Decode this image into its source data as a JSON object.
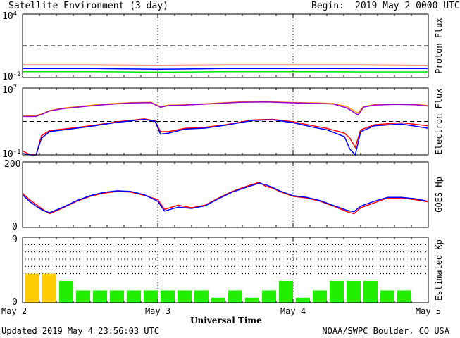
{
  "header": {
    "title": "Satellite Environment (3 day)",
    "begin_label": "Begin:",
    "begin_value": "2019 May 2 0000 UTC"
  },
  "footer": {
    "updated": "Updated 2019 May  4 23:56:03 UTC",
    "credit": "NOAA/SWPC Boulder, CO USA"
  },
  "chart_data": [
    {
      "type": "line",
      "title": "",
      "ylabel": "Proton Flux",
      "yscale": "log",
      "ylim": [
        0.01,
        10000
      ],
      "yticks": [
        {
          "v": 10000,
          "base": "10",
          "exp": "4"
        },
        {
          "v": 0.01,
          "base": "10",
          "exp": "-2"
        }
      ],
      "threshold": 10,
      "xlim": [
        0,
        3
      ],
      "grid": false,
      "series": [
        {
          "color": "#ff0000",
          "x": [
            0,
            0.5,
            1,
            1.5,
            2,
            2.5,
            3
          ],
          "values": [
            0.15,
            0.15,
            0.14,
            0.15,
            0.15,
            0.15,
            0.14
          ]
        },
        {
          "color": "#0000ff",
          "x": [
            0,
            0.5,
            1,
            1.5,
            2,
            2.5,
            3
          ],
          "values": [
            0.07,
            0.07,
            0.06,
            0.07,
            0.07,
            0.07,
            0.07
          ]
        },
        {
          "color": "#00e000",
          "x": [
            0,
            0.5,
            1,
            1.5,
            2,
            2.5,
            3
          ],
          "values": [
            0.035,
            0.035,
            0.032,
            0.035,
            0.035,
            0.034,
            0.034
          ]
        }
      ]
    },
    {
      "type": "line",
      "title": "",
      "ylabel": "Electron Flux",
      "yscale": "log",
      "ylim": [
        0.1,
        10000000
      ],
      "yticks": [
        {
          "v": 10000000,
          "base": "10",
          "exp": "7"
        },
        {
          "v": 0.1,
          "base": "10",
          "exp": "-1"
        }
      ],
      "threshold": 1000,
      "xlim": [
        0,
        3
      ],
      "grid": false,
      "series": [
        {
          "color": "#ff9900",
          "x": [
            0,
            0.1,
            0.15,
            0.2,
            0.3,
            0.45,
            0.6,
            0.8,
            0.95,
            1.02,
            1.08,
            1.2,
            1.4,
            1.6,
            1.8,
            1.95,
            2.05,
            2.2,
            2.3,
            2.4,
            2.48,
            2.52,
            2.6,
            2.75,
            2.9,
            3
          ],
          "values": [
            5000,
            5000,
            9000,
            20000,
            40000,
            70000,
            120000,
            180000,
            200000,
            60000,
            90000,
            100000,
            150000,
            220000,
            240000,
            200000,
            180000,
            160000,
            140000,
            60000,
            10000,
            60000,
            100000,
            120000,
            110000,
            80000
          ]
        },
        {
          "color": "#9900cc",
          "x": [
            0,
            0.1,
            0.15,
            0.2,
            0.3,
            0.45,
            0.6,
            0.8,
            0.95,
            1.02,
            1.08,
            1.2,
            1.4,
            1.6,
            1.8,
            1.95,
            2.05,
            2.2,
            2.3,
            2.4,
            2.48,
            2.52,
            2.6,
            2.75,
            2.9,
            3
          ],
          "values": [
            4000,
            4000,
            8000,
            18000,
            35000,
            60000,
            100000,
            160000,
            180000,
            50000,
            80000,
            90000,
            130000,
            200000,
            220000,
            180000,
            160000,
            140000,
            120000,
            40000,
            6000,
            50000,
            90000,
            110000,
            100000,
            70000
          ]
        },
        {
          "color": "#ff0000",
          "x": [
            0,
            0.06,
            0.1,
            0.14,
            0.2,
            0.35,
            0.5,
            0.7,
            0.9,
            0.98,
            1.02,
            1.08,
            1.2,
            1.35,
            1.5,
            1.7,
            1.85,
            2.0,
            2.15,
            2.25,
            2.38,
            2.42,
            2.46,
            2.5,
            2.6,
            2.8,
            3
          ],
          "values": [
            0.3,
            0.1,
            0.1,
            20,
            80,
            150,
            300,
            900,
            2000,
            1200,
            60,
            60,
            150,
            200,
            400,
            1500,
            1800,
            900,
            300,
            150,
            40,
            10,
            0.8,
            100,
            400,
            700,
            300
          ]
        },
        {
          "color": "#0000ff",
          "x": [
            0,
            0.06,
            0.1,
            0.14,
            0.2,
            0.35,
            0.5,
            0.7,
            0.9,
            0.98,
            1.02,
            1.08,
            1.2,
            1.35,
            1.5,
            1.7,
            1.85,
            2.0,
            2.15,
            2.25,
            2.38,
            2.42,
            2.46,
            2.5,
            2.6,
            2.8,
            3
          ],
          "values": [
            0.15,
            0.1,
            0.1,
            10,
            60,
            120,
            250,
            800,
            1800,
            1000,
            30,
            40,
            120,
            160,
            350,
            1300,
            1600,
            700,
            200,
            100,
            15,
            0.5,
            0.1,
            60,
            300,
            500,
            150
          ]
        }
      ]
    },
    {
      "type": "line",
      "title": "",
      "ylabel": "GOES Hp",
      "yscale": "linear",
      "ylim": [
        0,
        200
      ],
      "yticks": [
        {
          "v": 200,
          "label": "200"
        },
        {
          "v": 0,
          "label": "0"
        }
      ],
      "xlim": [
        0,
        3
      ],
      "grid": false,
      "series": [
        {
          "color": "#ff0000",
          "x": [
            0,
            0.05,
            0.1,
            0.15,
            0.2,
            0.3,
            0.4,
            0.5,
            0.6,
            0.7,
            0.8,
            0.9,
            1.0,
            1.05,
            1.15,
            1.25,
            1.35,
            1.45,
            1.55,
            1.65,
            1.75,
            1.8,
            1.85,
            1.9,
            2.0,
            2.1,
            2.2,
            2.3,
            2.4,
            2.45,
            2.5,
            2.6,
            2.7,
            2.8,
            2.9,
            3.0
          ],
          "values": [
            105,
            85,
            70,
            55,
            42,
            60,
            80,
            95,
            105,
            110,
            108,
            98,
            85,
            55,
            68,
            60,
            68,
            90,
            110,
            125,
            138,
            125,
            120,
            110,
            95,
            90,
            80,
            65,
            48,
            42,
            60,
            75,
            90,
            90,
            85,
            78
          ]
        },
        {
          "color": "#0000ff",
          "x": [
            0,
            0.05,
            0.1,
            0.15,
            0.2,
            0.3,
            0.4,
            0.5,
            0.6,
            0.7,
            0.8,
            0.9,
            1.0,
            1.05,
            1.15,
            1.25,
            1.35,
            1.45,
            1.55,
            1.65,
            1.75,
            1.8,
            1.85,
            1.9,
            2.0,
            2.1,
            2.2,
            2.3,
            2.4,
            2.45,
            2.5,
            2.6,
            2.7,
            2.8,
            2.9,
            3.0
          ],
          "values": [
            100,
            80,
            65,
            52,
            45,
            62,
            82,
            97,
            107,
            112,
            110,
            100,
            80,
            50,
            62,
            58,
            66,
            88,
            108,
            122,
            135,
            130,
            122,
            112,
            97,
            92,
            82,
            67,
            52,
            48,
            65,
            80,
            92,
            92,
            88,
            80
          ]
        }
      ]
    },
    {
      "type": "bar",
      "title": "",
      "ylabel": "Estimated Kp",
      "yscale": "linear",
      "ylim": [
        0,
        9
      ],
      "yticks": [
        {
          "v": 9,
          "label": "9"
        },
        {
          "v": 0,
          "label": "0"
        }
      ],
      "gridlines": [
        4,
        5,
        6,
        7,
        8
      ],
      "xlim": [
        0,
        3
      ],
      "x": [
        0,
        0.125,
        0.25,
        0.375,
        0.5,
        0.625,
        0.75,
        0.875,
        1.0,
        1.125,
        1.25,
        1.375,
        1.5,
        1.625,
        1.75,
        1.875,
        2.0,
        2.125,
        2.25,
        2.375,
        2.5,
        2.625,
        2.75,
        2.875
      ],
      "values": [
        4,
        4,
        3,
        1.7,
        1.7,
        1.7,
        1.7,
        1.7,
        1.7,
        1.7,
        1.7,
        0.7,
        1.7,
        0.7,
        1.7,
        3,
        0.7,
        1.7,
        3,
        3,
        3,
        1.7,
        1.7,
        0
      ],
      "colors": {
        "normal": "#22ee00",
        "active": "#ffcc00"
      },
      "active_threshold": 4
    }
  ],
  "x_axis": {
    "title": "Universal Time",
    "ticks": [
      {
        "v": 0,
        "label": "May 2"
      },
      {
        "v": 1,
        "label": "May 3"
      },
      {
        "v": 2,
        "label": "May 4"
      },
      {
        "v": 3,
        "label": "May 5"
      }
    ]
  }
}
